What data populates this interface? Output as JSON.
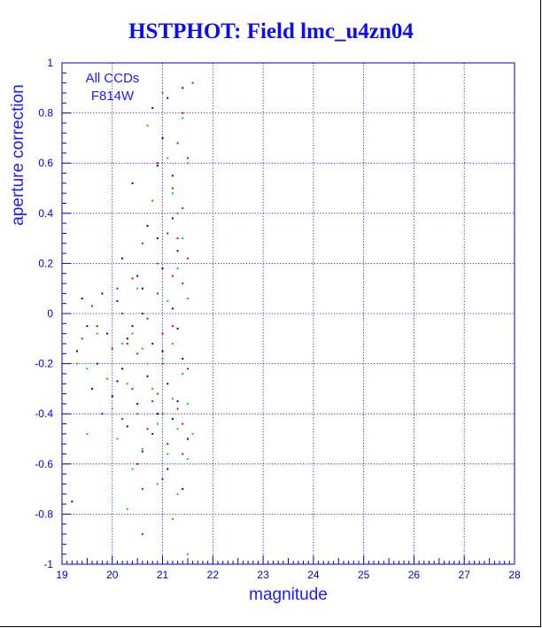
{
  "chart_data": {
    "type": "scatter",
    "title": "HSTPHOT: Field lmc_u4zn04",
    "xlabel": "magnitude",
    "ylabel": "aperture correction",
    "xlim": [
      19,
      28
    ],
    "ylim": [
      -1,
      1
    ],
    "x_ticks": [
      19,
      20,
      21,
      22,
      23,
      24,
      25,
      26,
      27,
      28
    ],
    "y_ticks": [
      -1,
      -0.8,
      -0.6,
      -0.4,
      -0.2,
      0,
      0.2,
      0.4,
      0.6,
      0.8,
      1
    ],
    "x_tick_labels": [
      "19",
      "20",
      "21",
      "22",
      "23",
      "24",
      "25",
      "26",
      "27",
      "28"
    ],
    "y_tick_labels": [
      "-1",
      "-0.8",
      "-0.6",
      "-0.4",
      "-0.2",
      "0",
      "0.2",
      "0.4",
      "0.6",
      "0.8",
      "1"
    ],
    "grid": true,
    "annotations": [
      "All CCDs",
      "F814W"
    ],
    "series_colors": [
      "#000099",
      "#ee0000",
      "#00dd00"
    ],
    "series": [
      {
        "color": "#000099",
        "points": [
          [
            20.8,
            0.82
          ],
          [
            21.1,
            0.86
          ],
          [
            21.4,
            0.9
          ],
          [
            20.9,
            0.59
          ],
          [
            20.4,
            0.52
          ],
          [
            20.7,
            0.35
          ],
          [
            21.2,
            0.38
          ],
          [
            20.2,
            0.22
          ],
          [
            20.5,
            0.15
          ],
          [
            21.0,
            0.18
          ],
          [
            21.3,
            0.25
          ],
          [
            19.8,
            0.08
          ],
          [
            20.1,
            0.05
          ],
          [
            20.6,
            0.0
          ],
          [
            21.2,
            0.02
          ],
          [
            19.5,
            -0.05
          ],
          [
            19.9,
            -0.08
          ],
          [
            20.3,
            -0.1
          ],
          [
            20.8,
            -0.12
          ],
          [
            21.3,
            -0.06
          ],
          [
            19.3,
            -0.15
          ],
          [
            19.7,
            -0.2
          ],
          [
            20.2,
            -0.22
          ],
          [
            20.7,
            -0.25
          ],
          [
            21.1,
            -0.28
          ],
          [
            21.4,
            -0.18
          ],
          [
            19.6,
            -0.3
          ],
          [
            20.0,
            -0.33
          ],
          [
            20.5,
            -0.36
          ],
          [
            20.9,
            -0.4
          ],
          [
            21.2,
            -0.42
          ],
          [
            20.3,
            -0.45
          ],
          [
            20.8,
            -0.48
          ],
          [
            21.5,
            -0.5
          ],
          [
            19.2,
            -0.75
          ],
          [
            21.1,
            -0.62
          ],
          [
            20.6,
            -0.55
          ],
          [
            21.4,
            -0.7
          ],
          [
            19.4,
            0.06
          ],
          [
            20.4,
            -0.05
          ],
          [
            21.0,
            -0.15
          ],
          [
            21.3,
            -0.35
          ],
          [
            20.1,
            -0.27
          ],
          [
            19.8,
            -0.4
          ],
          [
            20.6,
            0.1
          ],
          [
            21.2,
            0.55
          ],
          [
            20.9,
            0.3
          ],
          [
            21.0,
            0.7
          ]
        ]
      },
      {
        "color": "#ee0000",
        "points": [
          [
            21.6,
            0.92
          ],
          [
            21.3,
            0.68
          ],
          [
            21.4,
            0.8
          ],
          [
            21.5,
            0.62
          ],
          [
            20.9,
            0.6
          ],
          [
            21.2,
            0.5
          ],
          [
            21.4,
            0.42
          ],
          [
            20.6,
            0.28
          ],
          [
            21.1,
            0.32
          ],
          [
            21.5,
            0.22
          ],
          [
            20.4,
            0.14
          ],
          [
            20.9,
            0.08
          ],
          [
            21.4,
            0.12
          ],
          [
            19.6,
            0.03
          ],
          [
            20.2,
            0.0
          ],
          [
            20.7,
            -0.02
          ],
          [
            21.2,
            -0.05
          ],
          [
            19.4,
            -0.1
          ],
          [
            20.0,
            -0.14
          ],
          [
            20.5,
            -0.16
          ],
          [
            21.0,
            -0.2
          ],
          [
            21.5,
            -0.22
          ],
          [
            19.9,
            -0.26
          ],
          [
            20.4,
            -0.3
          ],
          [
            20.9,
            -0.32
          ],
          [
            21.3,
            -0.38
          ],
          [
            20.2,
            -0.42
          ],
          [
            20.7,
            -0.46
          ],
          [
            21.1,
            -0.52
          ],
          [
            21.4,
            -0.56
          ],
          [
            20.5,
            -0.6
          ],
          [
            21.0,
            -0.66
          ],
          [
            20.6,
            -0.88
          ],
          [
            20.3,
            -0.12
          ],
          [
            20.8,
            -0.35
          ],
          [
            19.7,
            -0.05
          ],
          [
            21.2,
            0.15
          ],
          [
            20.1,
            0.1
          ],
          [
            21.3,
            0.3
          ],
          [
            20.8,
            0.45
          ],
          [
            21.0,
            -0.08
          ],
          [
            21.4,
            -0.44
          ],
          [
            20.6,
            -0.7
          ]
        ]
      },
      {
        "color": "#00dd00",
        "points": [
          [
            21.0,
            0.88
          ],
          [
            21.4,
            0.78
          ],
          [
            20.7,
            0.75
          ],
          [
            21.5,
            0.6
          ],
          [
            21.2,
            0.48
          ],
          [
            20.8,
            0.45
          ],
          [
            21.4,
            0.3
          ],
          [
            20.9,
            0.2
          ],
          [
            21.3,
            0.18
          ],
          [
            20.5,
            0.1
          ],
          [
            21.1,
            0.05
          ],
          [
            21.5,
            0.06
          ],
          [
            19.7,
            -0.08
          ],
          [
            20.2,
            -0.12
          ],
          [
            20.6,
            -0.14
          ],
          [
            21.0,
            -0.18
          ],
          [
            21.4,
            -0.24
          ],
          [
            19.5,
            -0.22
          ],
          [
            19.9,
            -0.26
          ],
          [
            20.3,
            -0.28
          ],
          [
            20.8,
            -0.3
          ],
          [
            21.2,
            -0.34
          ],
          [
            21.5,
            -0.36
          ],
          [
            20.0,
            -0.38
          ],
          [
            20.5,
            -0.4
          ],
          [
            20.9,
            -0.44
          ],
          [
            21.3,
            -0.46
          ],
          [
            21.6,
            -0.48
          ],
          [
            20.1,
            -0.5
          ],
          [
            20.6,
            -0.54
          ],
          [
            21.1,
            -0.56
          ],
          [
            21.5,
            -0.58
          ],
          [
            20.4,
            -0.62
          ],
          [
            20.9,
            -0.68
          ],
          [
            21.3,
            -0.72
          ],
          [
            20.3,
            -0.78
          ],
          [
            21.2,
            -0.82
          ],
          [
            21.5,
            -0.96
          ],
          [
            19.3,
            -0.2
          ],
          [
            19.5,
            -0.48
          ],
          [
            20.7,
            -0.2
          ],
          [
            21.0,
            -0.4
          ],
          [
            21.2,
            -0.12
          ],
          [
            20.4,
            -0.08
          ],
          [
            21.3,
            0.4
          ],
          [
            21.1,
            0.62
          ]
        ]
      }
    ]
  }
}
